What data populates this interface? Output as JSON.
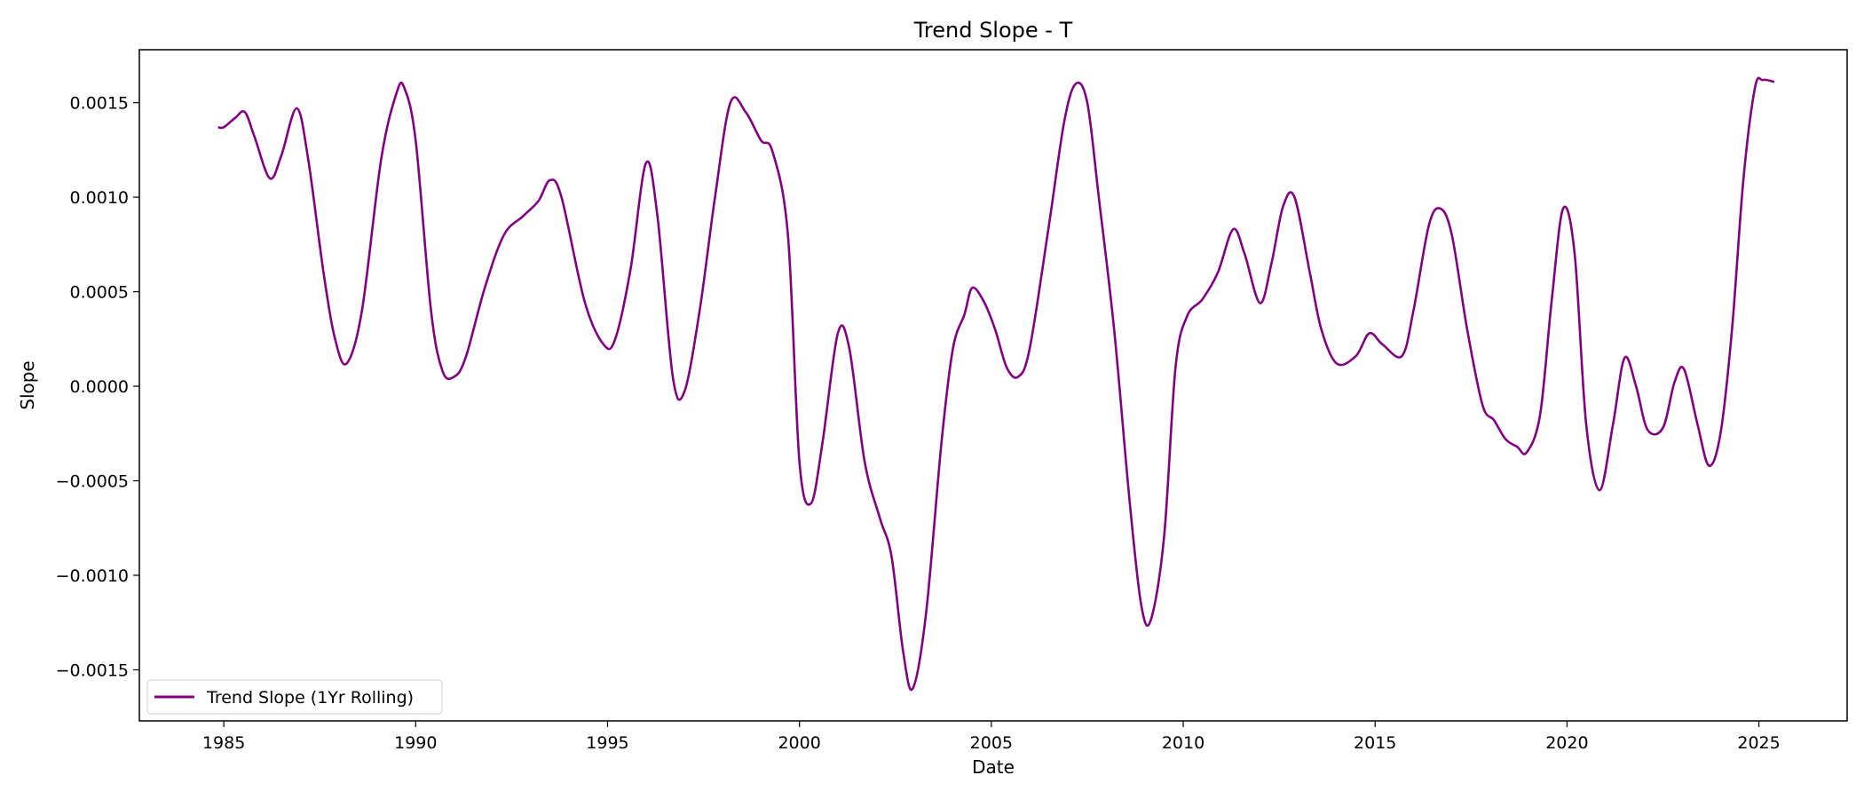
{
  "chart_data": {
    "type": "line",
    "title": "Trend Slope - T",
    "xlabel": "Date",
    "ylabel": "Slope",
    "xlim": [
      1982.8,
      2027.3
    ],
    "ylim": [
      -0.00177,
      0.00178
    ],
    "x_ticks": [
      1985,
      1990,
      1995,
      2000,
      2005,
      2010,
      2015,
      2020,
      2025
    ],
    "y_ticks": [
      -0.0015,
      -0.001,
      -0.0005,
      0.0,
      0.0005,
      0.001,
      0.0015
    ],
    "y_tick_labels": [
      "−0.0015",
      "−0.0010",
      "−0.0005",
      "0.0000",
      "0.0005",
      "0.0010",
      "0.0015"
    ],
    "grid": false,
    "legend_position": "lower-left",
    "series": [
      {
        "name": "Trend Slope (1Yr Rolling)",
        "color": "#800080",
        "points": [
          [
            1984.85,
            0.00137
          ],
          [
            1985.0,
            0.00137
          ],
          [
            1985.3,
            0.00142
          ],
          [
            1985.55,
            0.00145
          ],
          [
            1985.8,
            0.00132
          ],
          [
            1986.2,
            0.0011
          ],
          [
            1986.5,
            0.00122
          ],
          [
            1986.9,
            0.00147
          ],
          [
            1987.2,
            0.0012
          ],
          [
            1987.6,
            0.0006
          ],
          [
            1987.9,
            0.00025
          ],
          [
            1988.2,
            0.00012
          ],
          [
            1988.6,
            0.0004
          ],
          [
            1989.1,
            0.0012
          ],
          [
            1989.5,
            0.00155
          ],
          [
            1989.7,
            0.00158
          ],
          [
            1990.0,
            0.0013
          ],
          [
            1990.4,
            0.0004
          ],
          [
            1990.7,
            8e-05
          ],
          [
            1991.0,
            5e-05
          ],
          [
            1991.3,
            0.00015
          ],
          [
            1991.8,
            0.00052
          ],
          [
            1992.3,
            0.0008
          ],
          [
            1992.8,
            0.0009
          ],
          [
            1993.2,
            0.00098
          ],
          [
            1993.5,
            0.00109
          ],
          [
            1993.8,
            0.001
          ],
          [
            1994.4,
            0.00045
          ],
          [
            1994.9,
            0.00022
          ],
          [
            1995.2,
            0.00025
          ],
          [
            1995.6,
            0.00062
          ],
          [
            1996.0,
            0.00118
          ],
          [
            1996.3,
            0.0009
          ],
          [
            1996.7,
            5e-05
          ],
          [
            1997.0,
            -3e-05
          ],
          [
            1997.4,
            0.0004
          ],
          [
            1997.8,
            0.001
          ],
          [
            1998.2,
            0.0015
          ],
          [
            1998.6,
            0.00145
          ],
          [
            1999.0,
            0.0013
          ],
          [
            1999.3,
            0.00124
          ],
          [
            1999.7,
            0.0008
          ],
          [
            2000.0,
            -0.0004
          ],
          [
            2000.3,
            -0.00062
          ],
          [
            2000.6,
            -0.0003
          ],
          [
            2001.0,
            0.00028
          ],
          [
            2001.3,
            0.0002
          ],
          [
            2001.7,
            -0.0004
          ],
          [
            2002.1,
            -0.0007
          ],
          [
            2002.4,
            -0.0009
          ],
          [
            2002.7,
            -0.0014
          ],
          [
            2002.95,
            -0.0016
          ],
          [
            2003.3,
            -0.0012
          ],
          [
            2003.7,
            -0.0003
          ],
          [
            2004.0,
            0.0002
          ],
          [
            2004.3,
            0.00038
          ],
          [
            2004.5,
            0.00052
          ],
          [
            2004.8,
            0.00045
          ],
          [
            2005.1,
            0.0003
          ],
          [
            2005.4,
            0.0001
          ],
          [
            2005.7,
            5e-05
          ],
          [
            2006.0,
            0.0002
          ],
          [
            2006.5,
            0.00085
          ],
          [
            2006.9,
            0.0014
          ],
          [
            2007.2,
            0.0016
          ],
          [
            2007.5,
            0.0015
          ],
          [
            2007.8,
            0.001
          ],
          [
            2008.2,
            0.0003
          ],
          [
            2008.6,
            -0.0006
          ],
          [
            2008.9,
            -0.00115
          ],
          [
            2009.15,
            -0.00124
          ],
          [
            2009.5,
            -0.0008
          ],
          [
            2009.8,
            0.0001
          ],
          [
            2010.1,
            0.00037
          ],
          [
            2010.5,
            0.00046
          ],
          [
            2010.9,
            0.0006
          ],
          [
            2011.3,
            0.00083
          ],
          [
            2011.6,
            0.0007
          ],
          [
            2012.0,
            0.00044
          ],
          [
            2012.3,
            0.00065
          ],
          [
            2012.6,
            0.00095
          ],
          [
            2012.9,
            0.001
          ],
          [
            2013.3,
            0.0006
          ],
          [
            2013.6,
            0.0003
          ],
          [
            2014.0,
            0.00012
          ],
          [
            2014.5,
            0.00016
          ],
          [
            2014.85,
            0.00028
          ],
          [
            2015.2,
            0.00022
          ],
          [
            2015.7,
            0.00016
          ],
          [
            2016.0,
            0.0004
          ],
          [
            2016.4,
            0.00085
          ],
          [
            2016.7,
            0.00094
          ],
          [
            2017.0,
            0.0008
          ],
          [
            2017.4,
            0.0003
          ],
          [
            2017.8,
            -0.0001
          ],
          [
            2018.1,
            -0.00018
          ],
          [
            2018.4,
            -0.00028
          ],
          [
            2018.7,
            -0.00032
          ],
          [
            2018.95,
            -0.00035
          ],
          [
            2019.3,
            -0.00015
          ],
          [
            2019.6,
            0.00045
          ],
          [
            2019.9,
            0.00094
          ],
          [
            2020.2,
            0.0007
          ],
          [
            2020.5,
            -0.0002
          ],
          [
            2020.85,
            -0.00055
          ],
          [
            2021.2,
            -0.0002
          ],
          [
            2021.5,
            0.00015
          ],
          [
            2021.8,
            0.0
          ],
          [
            2022.1,
            -0.00023
          ],
          [
            2022.5,
            -0.00022
          ],
          [
            2022.8,
            2e-05
          ],
          [
            2023.05,
            9e-05
          ],
          [
            2023.4,
            -0.0002
          ],
          [
            2023.7,
            -0.00042
          ],
          [
            2024.0,
            -0.00025
          ],
          [
            2024.3,
            0.0003
          ],
          [
            2024.6,
            0.0011
          ],
          [
            2024.9,
            0.00158
          ],
          [
            2025.1,
            0.00162
          ],
          [
            2025.4,
            0.00161
          ]
        ]
      }
    ]
  }
}
